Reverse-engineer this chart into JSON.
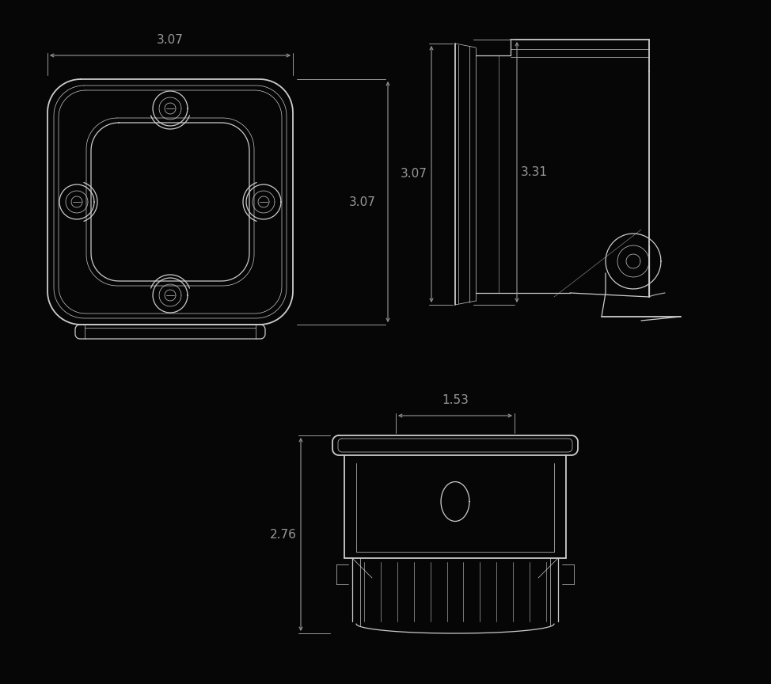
{
  "bg_color": "#060606",
  "line_color": "#cccccc",
  "dim_color": "#999999",
  "lw": 0.9,
  "lw2": 1.3,
  "lw3": 0.5,
  "fs": 11,
  "dim_307_top": "3.07",
  "dim_307_side": "3.07",
  "dim_331": "3.31",
  "dim_153": "1.53",
  "dim_276": "2.76"
}
